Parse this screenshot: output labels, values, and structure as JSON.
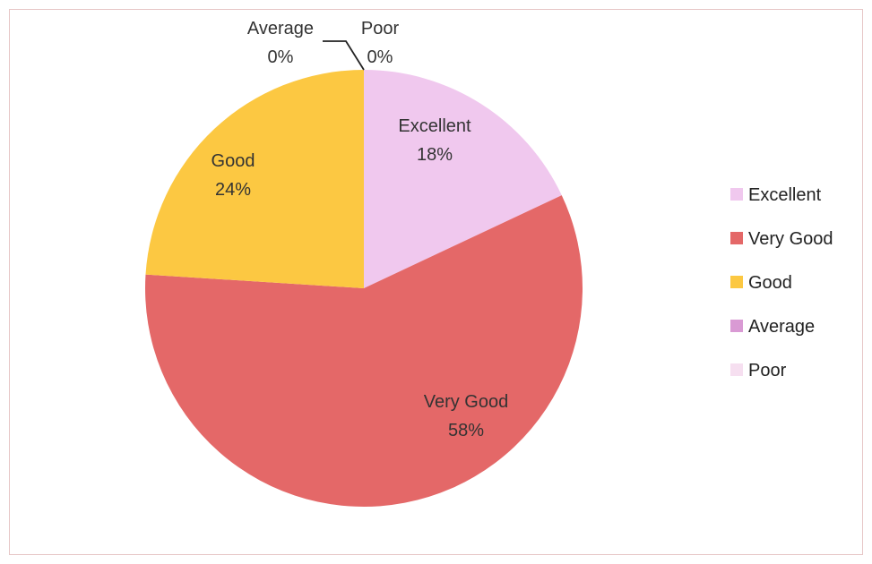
{
  "chart_data": {
    "type": "pie",
    "title": "",
    "categories": [
      "Excellent",
      "Very Good",
      "Good",
      "Average",
      "Poor"
    ],
    "values": [
      18,
      58,
      24,
      0,
      0
    ],
    "value_labels": [
      "18%",
      "58%",
      "24%",
      "0%",
      "0%"
    ],
    "colors": [
      "#f0c8ee",
      "#e46868",
      "#fcc842",
      "#d99ad4",
      "#f6dff0"
    ],
    "legend": {
      "placement": "right",
      "items": [
        "Excellent",
        "Very Good",
        "Good",
        "Average",
        "Poor"
      ]
    }
  }
}
